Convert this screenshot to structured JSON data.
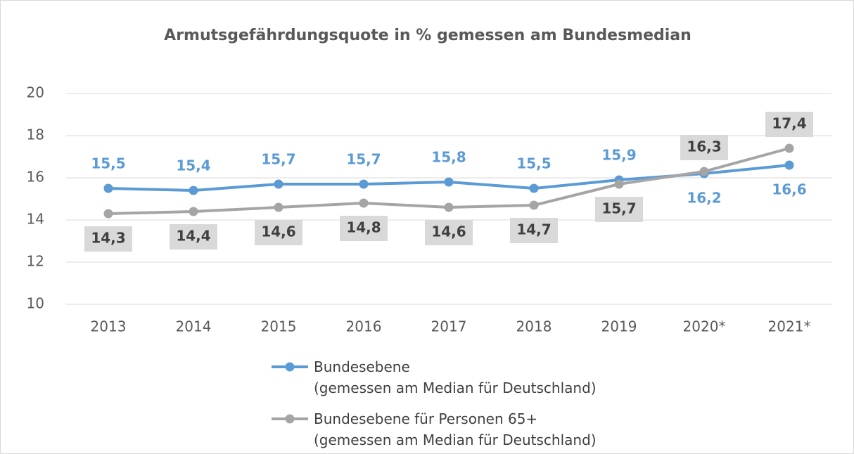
{
  "chart_data": {
    "type": "line",
    "title": "Armutsgefährdungsquote in % gemessen am Bundesmedian",
    "categories": [
      "2013",
      "2014",
      "2015",
      "2016",
      "2017",
      "2018",
      "2019",
      "2020*",
      "2021*"
    ],
    "series": [
      {
        "name": "Bundesebene\n(gemessen am Median für Deutschland)",
        "color": "#5b9bd5",
        "values": [
          15.5,
          15.4,
          15.7,
          15.7,
          15.8,
          15.5,
          15.9,
          16.2,
          16.6
        ],
        "value_labels": [
          "15,5",
          "15,4",
          "15,7",
          "15,7",
          "15,8",
          "15,5",
          "15,9",
          "16,2",
          "16,6"
        ]
      },
      {
        "name": "Bundesebene für Personen 65+\n(gemessen am Median für Deutschland)",
        "color": "#a5a5a5",
        "values": [
          14.3,
          14.4,
          14.6,
          14.8,
          14.6,
          14.7,
          15.7,
          16.3,
          17.4
        ],
        "value_labels": [
          "14,3",
          "14,4",
          "14,6",
          "14,8",
          "14,6",
          "14,7",
          "15,7",
          "16,3",
          "17,4"
        ]
      }
    ],
    "ylim": [
      10,
      20
    ],
    "yticks": [
      10,
      12,
      14,
      16,
      18,
      20
    ],
    "grid": true,
    "legend": "bottom"
  }
}
